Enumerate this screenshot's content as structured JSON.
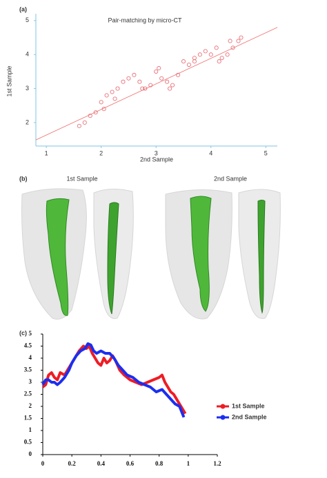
{
  "chart_data": [
    {
      "type": "scatter",
      "panel_label": "(a)",
      "title": "Pair-matching by micro-CT",
      "x_label": "2nd Sample",
      "y_label": "1st Sample",
      "xlim": [
        0.81,
        5.21
      ],
      "ylim": [
        1.31,
        5.2
      ],
      "xticks": [
        1,
        2,
        3,
        4,
        5
      ],
      "yticks": [
        2,
        3,
        4,
        5
      ],
      "color": "#e8737a",
      "line_color": "#f06a6a",
      "x": [
        1.6,
        1.7,
        1.8,
        1.9,
        2.0,
        2.05,
        2.1,
        2.2,
        2.25,
        2.3,
        2.4,
        2.5,
        2.6,
        2.7,
        2.75,
        2.8,
        2.9,
        3.0,
        3.05,
        3.1,
        3.2,
        3.25,
        3.3,
        3.4,
        3.5,
        3.6,
        3.7,
        3.7,
        3.8,
        3.9,
        4.0,
        4.1,
        4.15,
        4.2,
        4.3,
        4.35,
        4.4,
        4.5,
        4.55
      ],
      "values": [
        1.9,
        2.0,
        2.2,
        2.3,
        2.6,
        2.4,
        2.8,
        2.9,
        2.7,
        3.0,
        3.2,
        3.3,
        3.4,
        3.2,
        3.0,
        3.0,
        3.1,
        3.5,
        3.6,
        3.3,
        3.2,
        3.0,
        3.1,
        3.4,
        3.8,
        3.7,
        3.9,
        3.8,
        4.0,
        4.1,
        4.0,
        4.2,
        3.8,
        3.9,
        4.0,
        4.4,
        4.2,
        4.4,
        4.5
      ],
      "trend_line": {
        "x": [
          0.81,
          5.21
        ],
        "values": [
          1.49,
          4.8
        ]
      }
    },
    {
      "type": "image",
      "panel_label": "(b)",
      "labels": [
        "1st Sample",
        "2nd Sample"
      ]
    },
    {
      "type": "line",
      "panel_label": "(c)",
      "xlim": [
        0,
        1.2
      ],
      "ylim": [
        0,
        5
      ],
      "xticks": [
        0,
        0.2,
        0.4,
        0.6,
        0.8,
        1,
        1.2
      ],
      "yticks": [
        0,
        0.5,
        1,
        1.5,
        2,
        2.5,
        3,
        3.5,
        4,
        4.5,
        5
      ],
      "series": [
        {
          "name": "1st Sample",
          "color": "#ee1c25",
          "x": [
            0,
            0.02,
            0.04,
            0.06,
            0.08,
            0.1,
            0.12,
            0.15,
            0.18,
            0.2,
            0.22,
            0.25,
            0.28,
            0.3,
            0.32,
            0.34,
            0.36,
            0.38,
            0.4,
            0.42,
            0.44,
            0.46,
            0.48,
            0.5,
            0.53,
            0.56,
            0.6,
            0.64,
            0.68,
            0.72,
            0.76,
            0.8,
            0.82,
            0.84,
            0.88,
            0.9,
            0.93,
            0.96,
            0.98
          ],
          "values": [
            2.8,
            2.9,
            3.3,
            3.4,
            3.2,
            3.1,
            3.4,
            3.3,
            3.6,
            3.8,
            4.0,
            4.3,
            4.5,
            4.4,
            4.5,
            4.2,
            4.0,
            3.8,
            3.7,
            4.0,
            3.8,
            3.9,
            4.1,
            3.9,
            3.5,
            3.3,
            3.1,
            3.0,
            2.9,
            3.0,
            3.1,
            3.2,
            3.3,
            3.0,
            2.6,
            2.5,
            2.2,
            1.9,
            1.7
          ]
        },
        {
          "name": "2nd Sample",
          "color": "#1c2ef0",
          "x": [
            0,
            0.02,
            0.04,
            0.06,
            0.08,
            0.1,
            0.12,
            0.15,
            0.18,
            0.2,
            0.23,
            0.26,
            0.29,
            0.31,
            0.33,
            0.35,
            0.37,
            0.4,
            0.43,
            0.46,
            0.49,
            0.52,
            0.55,
            0.58,
            0.62,
            0.66,
            0.7,
            0.74,
            0.78,
            0.82,
            0.85,
            0.88,
            0.91,
            0.94,
            0.96,
            0.97
          ],
          "values": [
            2.9,
            3.1,
            3.1,
            3.0,
            3.0,
            2.9,
            3.0,
            3.2,
            3.5,
            3.8,
            4.1,
            4.3,
            4.4,
            4.6,
            4.55,
            4.3,
            4.2,
            4.3,
            4.2,
            4.2,
            4.0,
            3.7,
            3.5,
            3.3,
            3.2,
            3.0,
            2.9,
            2.8,
            2.6,
            2.7,
            2.5,
            2.3,
            2.1,
            2.0,
            1.7,
            1.55
          ]
        }
      ]
    }
  ]
}
